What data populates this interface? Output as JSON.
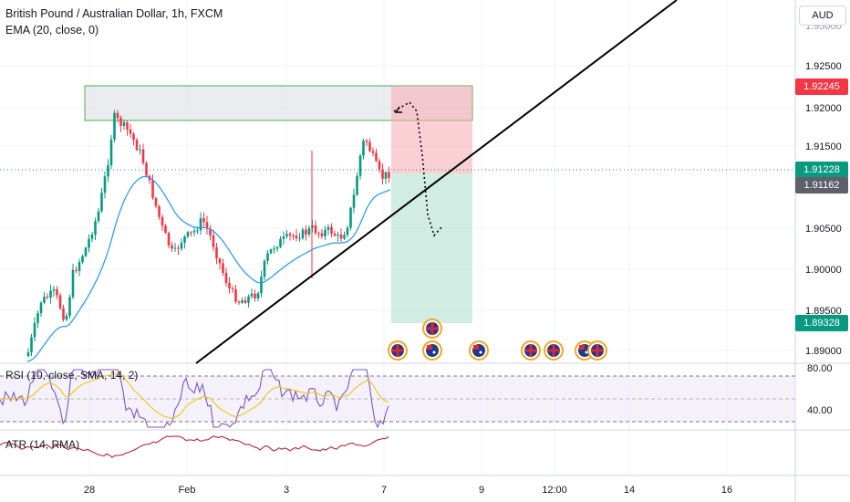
{
  "header": {
    "symbol_line": "British Pound / Australian Dollar, 1h, FXCM",
    "ema_line": "EMA (20, close, 0)"
  },
  "currency_button": "AUD",
  "price_axis": {
    "ticks": [
      "1.92500",
      "1.92000",
      "1.91500",
      "1.90500",
      "1.90000",
      "1.89500",
      "1.89000"
    ],
    "top_partial": "1.93000"
  },
  "price_tags": {
    "stop": {
      "label": "1.92245",
      "color": "#f23645"
    },
    "current": {
      "label": "1.91228",
      "color": "#089981"
    },
    "ema": {
      "label": "1.91162",
      "color": "#5d606b"
    },
    "target": {
      "label": "1.89328",
      "color": "#089981"
    }
  },
  "rsi": {
    "label": "RSI (10, close, SMA, 14, 2)",
    "axis_ticks": [
      "80.00",
      "40.00"
    ]
  },
  "atr": {
    "label": "ATR (14, RMA)"
  },
  "time_axis": {
    "ticks": [
      "28",
      "Feb",
      "3",
      "7",
      "9",
      "12:00",
      "14",
      "16"
    ]
  },
  "events": [
    {
      "flag": "uk-flag-icon"
    },
    {
      "flag": "uk-flag-icon"
    },
    {
      "flag": "au-flag-icon"
    },
    {
      "flag": "au-flag-icon"
    },
    {
      "flag": "uk-flag-icon"
    },
    {
      "flag": "uk-flag-icon"
    },
    {
      "flag": "au-flag-icon"
    },
    {
      "flag": "uk-flag-icon"
    }
  ],
  "colors": {
    "up_candle": "#089981",
    "down_candle": "#f23645",
    "ema_line": "#2196f3",
    "rsi_line": "#7e57c2",
    "rsi_ma_line": "#f0c419",
    "atr_line": "#b22833",
    "trendline": "#000000"
  }
}
